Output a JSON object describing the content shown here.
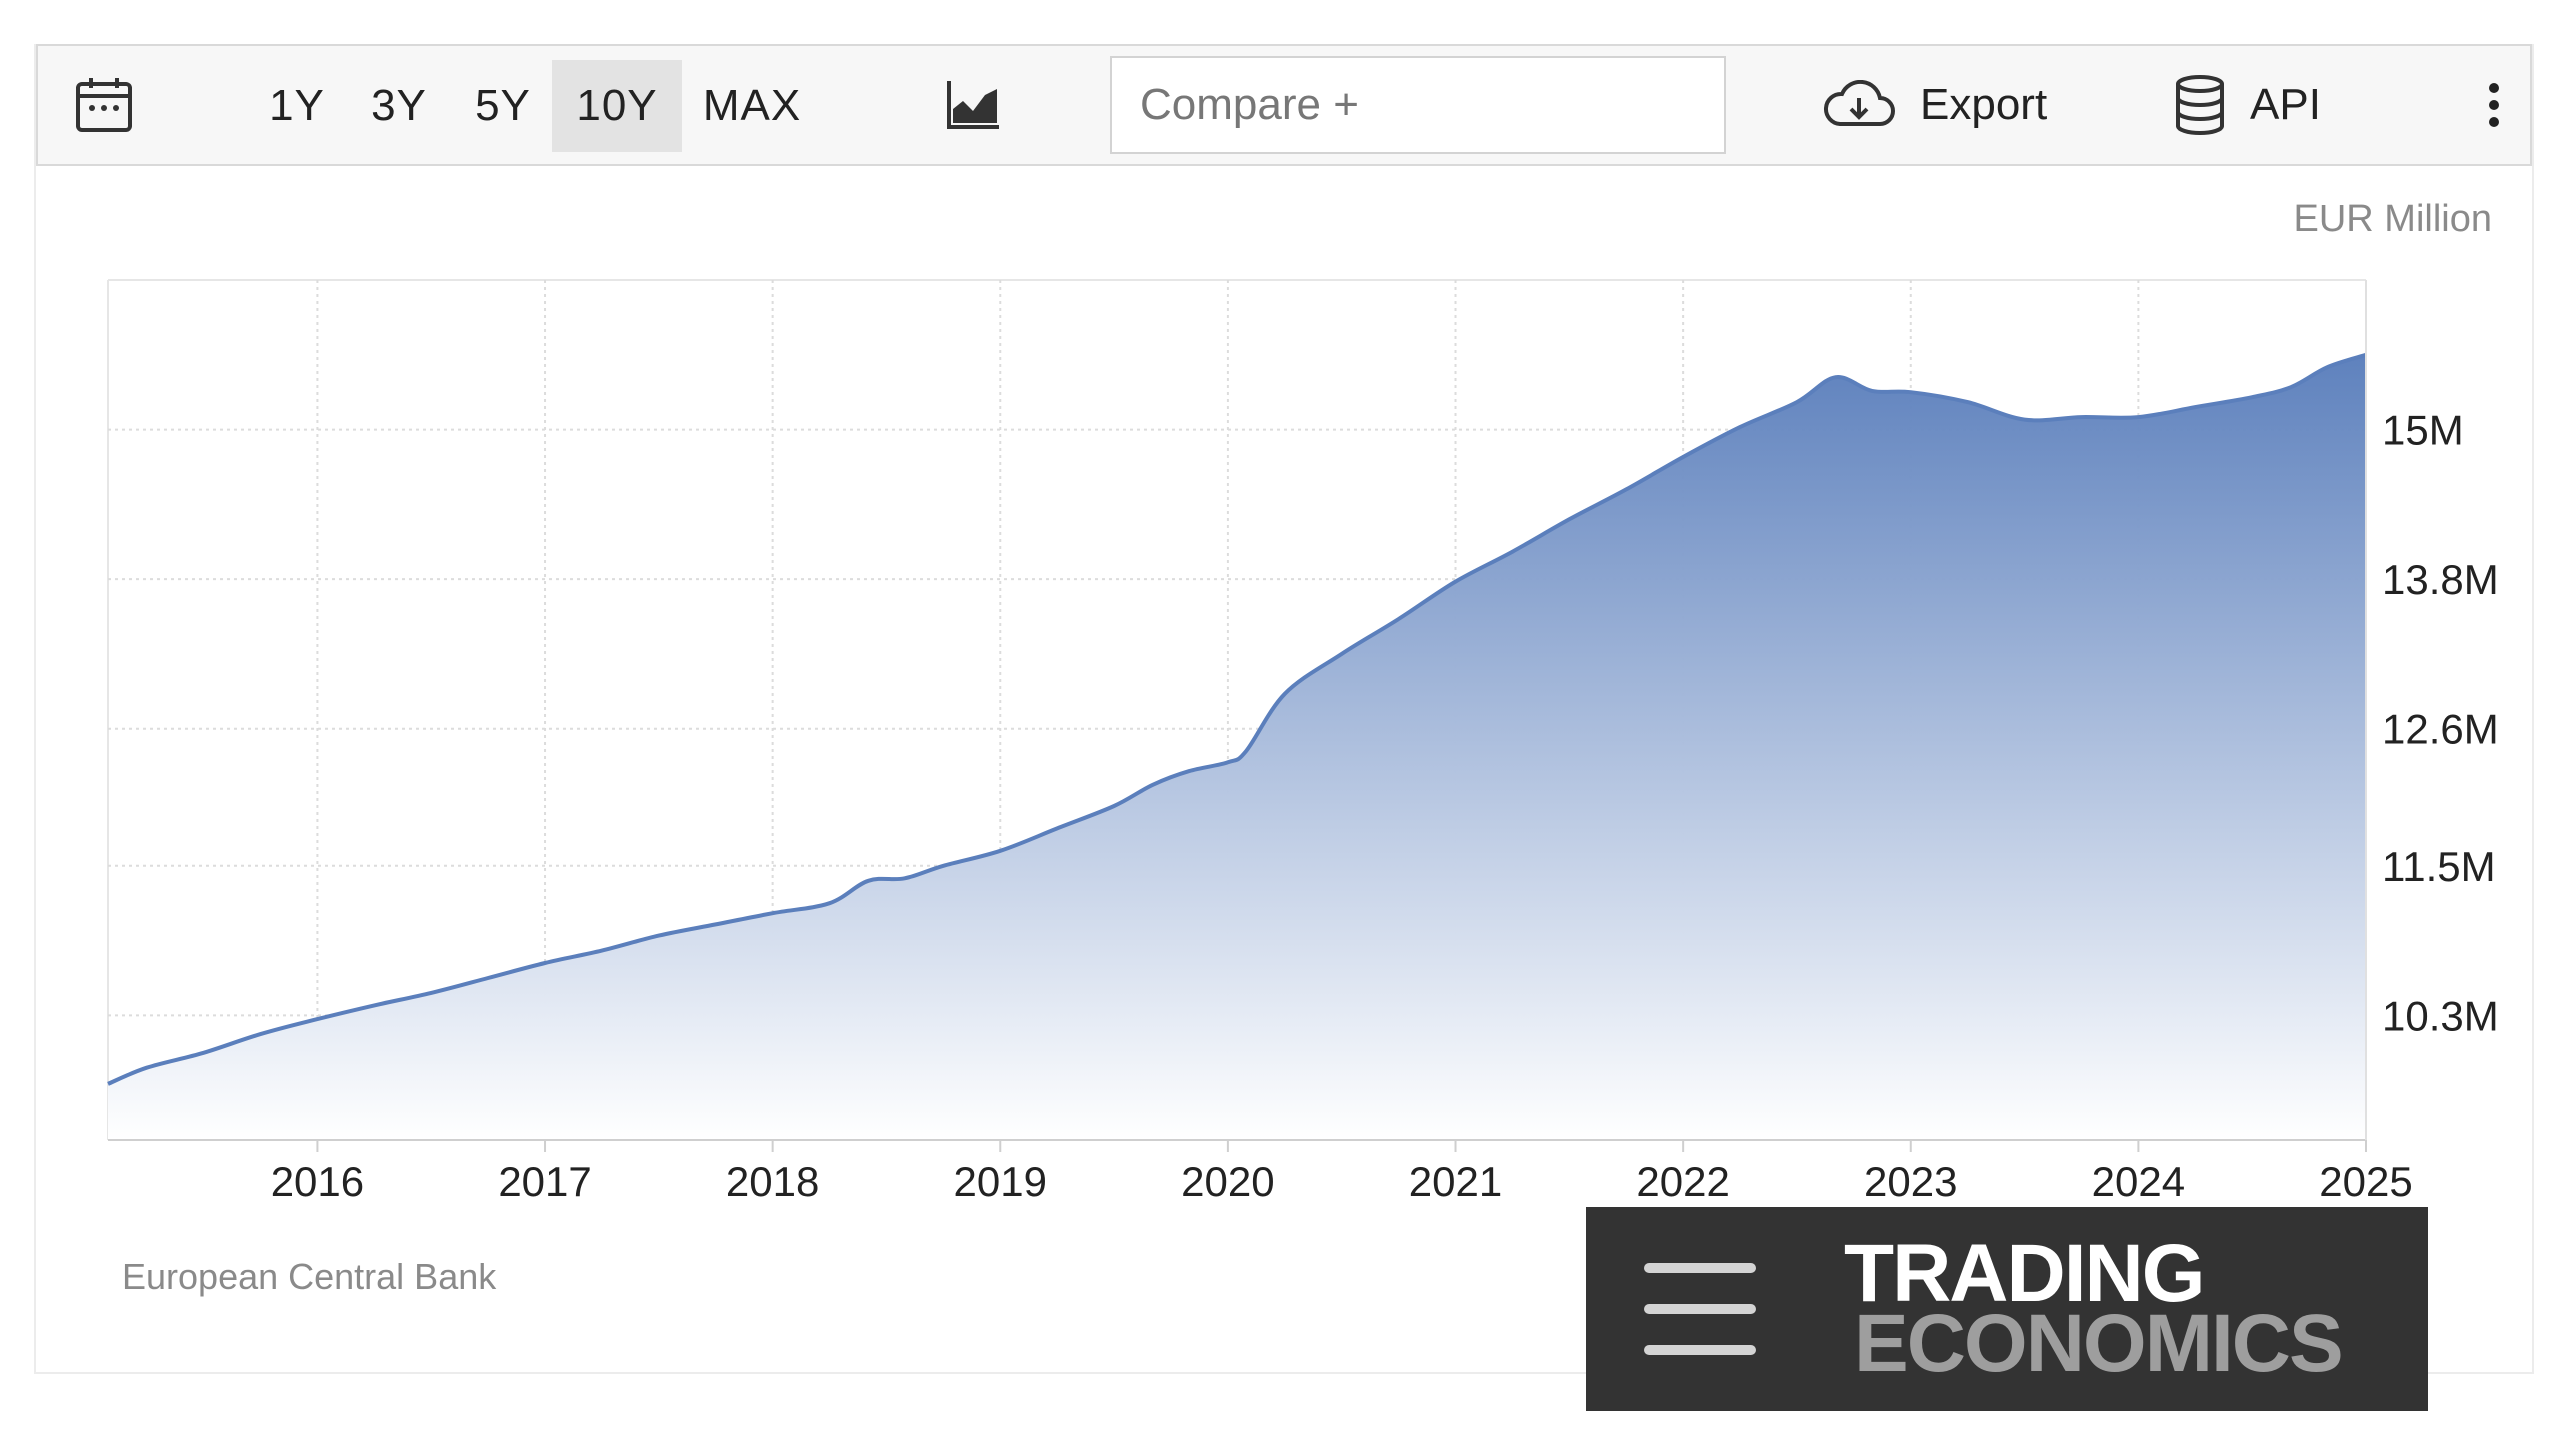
{
  "toolbar": {
    "ranges": [
      {
        "label": "1Y"
      },
      {
        "label": "3Y"
      },
      {
        "label": "5Y"
      },
      {
        "label": "10Y",
        "active": true
      },
      {
        "label": "MAX"
      }
    ],
    "compare_placeholder": "Compare +",
    "export_label": "Export",
    "api_label": "API"
  },
  "icons": {
    "calendar": "calendar-icon",
    "chart_type": "area-chart-icon",
    "export": "cloud-download-icon",
    "api": "database-icon",
    "more": "more-vertical-icon"
  },
  "colors": {
    "series_line": "#5b7fbc",
    "area_top": "#5b7fbc",
    "area_bottom": "#ffffff",
    "logo_bg": "#333333"
  },
  "chart_data": {
    "type": "area",
    "units": "EUR Million",
    "x_ticks": [
      "2016",
      "2017",
      "2018",
      "2019",
      "2020",
      "2021",
      "2022",
      "2023",
      "2024",
      "2025"
    ],
    "y_ticks": [
      {
        "value": 10.3,
        "label": "10.3M"
      },
      {
        "value": 11.5,
        "label": "11.5M"
      },
      {
        "value": 12.6,
        "label": "12.6M"
      },
      {
        "value": 13.8,
        "label": "13.8M"
      },
      {
        "value": 15.0,
        "label": "15M"
      }
    ],
    "xlim": [
      2015.08,
      2025.0
    ],
    "ylim": [
      9.3,
      16.2
    ],
    "grid": true,
    "series": [
      {
        "x": [
          2015.08,
          2015.25,
          2015.5,
          2015.75,
          2016.0,
          2016.25,
          2016.5,
          2016.75,
          2017.0,
          2017.25,
          2017.5,
          2017.75,
          2018.0,
          2018.25,
          2018.42,
          2018.58,
          2018.75,
          2019.0,
          2019.25,
          2019.5,
          2019.67,
          2019.83,
          2020.0,
          2020.08,
          2020.25,
          2020.5,
          2020.75,
          2021.0,
          2021.25,
          2021.5,
          2021.75,
          2022.0,
          2022.25,
          2022.5,
          2022.67,
          2022.83,
          2023.0,
          2023.25,
          2023.5,
          2023.75,
          2024.0,
          2024.25,
          2024.5,
          2024.67,
          2024.83,
          2025.0
        ],
        "y": [
          9.75,
          9.88,
          10.0,
          10.15,
          10.27,
          10.38,
          10.48,
          10.6,
          10.72,
          10.82,
          10.94,
          11.03,
          11.12,
          11.2,
          11.38,
          11.4,
          11.5,
          11.62,
          11.8,
          11.98,
          12.15,
          12.26,
          12.33,
          12.42,
          12.88,
          13.2,
          13.48,
          13.78,
          14.02,
          14.28,
          14.52,
          14.78,
          15.02,
          15.22,
          15.42,
          15.31,
          15.3,
          15.22,
          15.08,
          15.1,
          15.1,
          15.18,
          15.26,
          15.34,
          15.5,
          15.6
        ]
      }
    ]
  },
  "source": "European Central Bank",
  "logo": {
    "line1": "TRADING",
    "line2": "ECONOMICS"
  }
}
